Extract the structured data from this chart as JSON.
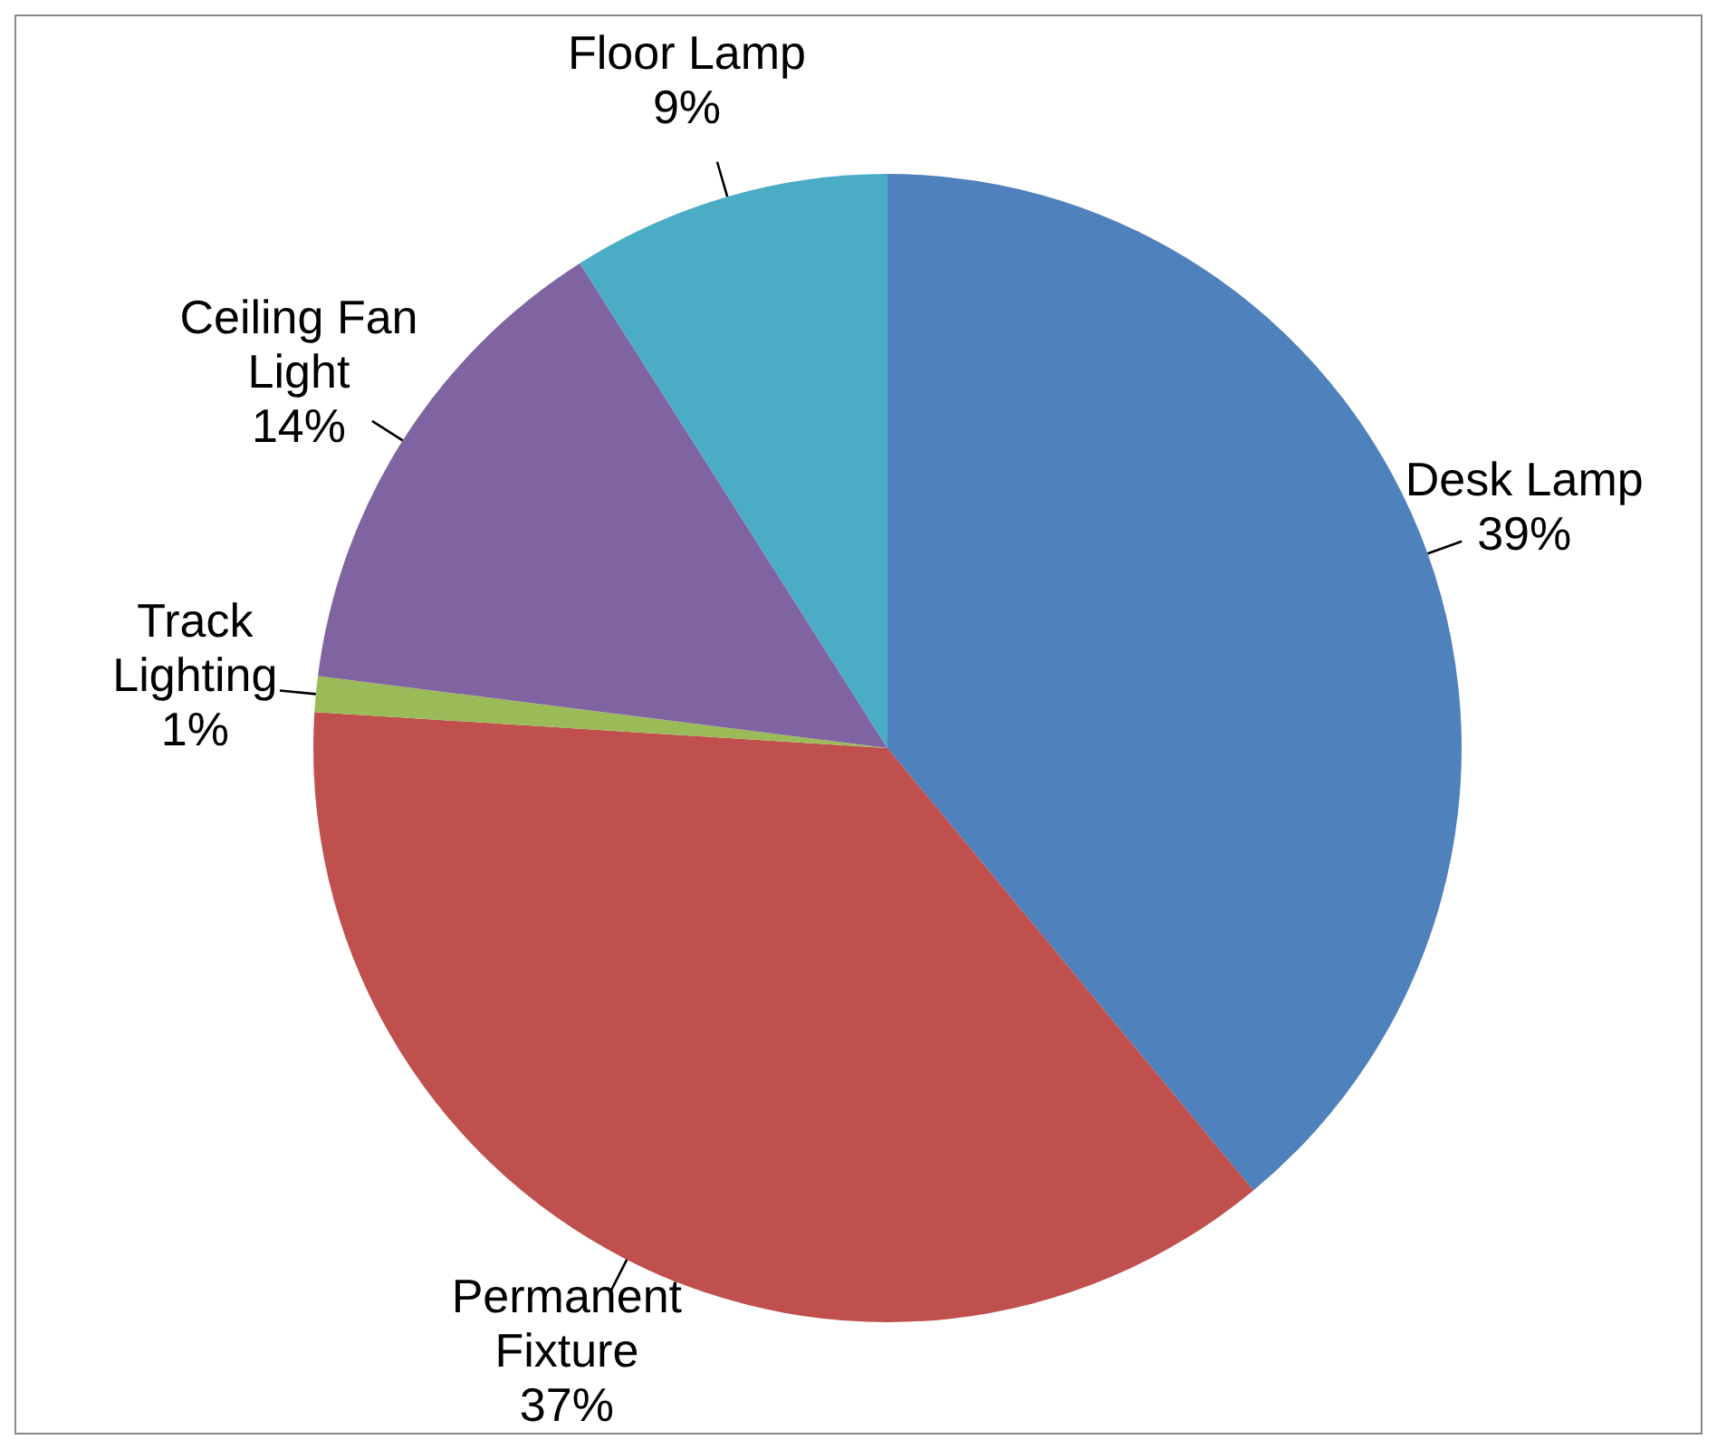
{
  "chart_data": {
    "type": "pie",
    "categories": [
      "Desk Lamp",
      "Permanent Fixture",
      "Track Lighting",
      "Ceiling Fan Light",
      "Floor Lamp"
    ],
    "values": [
      39,
      37,
      1,
      14,
      9
    ],
    "colors": [
      "#4f81bd",
      "#c0504d",
      "#9bbb59",
      "#8064a2",
      "#4bacc6"
    ],
    "value_labels": [
      "39%",
      "37%",
      "1%",
      "14%",
      "9%"
    ]
  }
}
